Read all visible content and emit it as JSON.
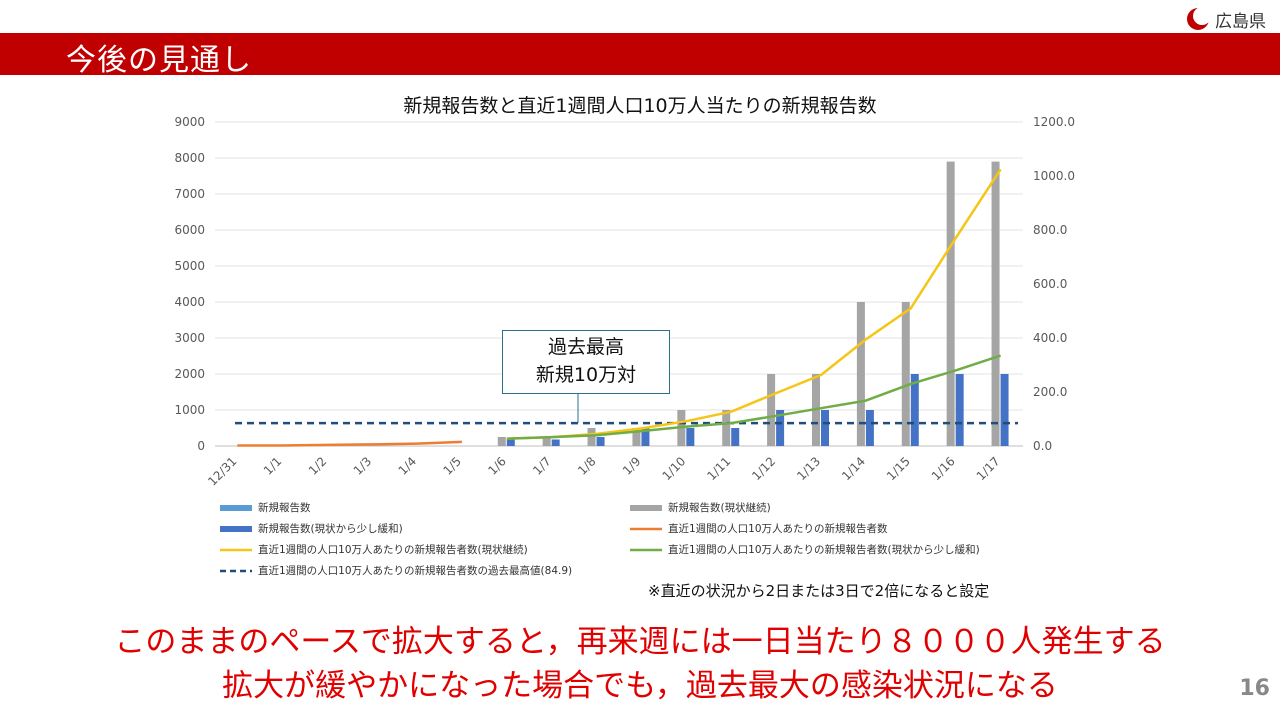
{
  "header": {
    "title": "今後の見通し",
    "logo_text": "広島県"
  },
  "chart_data": {
    "type": "bar",
    "title": "新規報告数と直近1週間人口10万人当たりの新規報告数",
    "categories": [
      "12/31",
      "1/1",
      "1/2",
      "1/3",
      "1/4",
      "1/5",
      "1/6",
      "1/7",
      "1/8",
      "1/9",
      "1/10",
      "1/11",
      "1/12",
      "1/13",
      "1/14",
      "1/15",
      "1/16",
      "1/17"
    ],
    "y_left": {
      "range": [
        0,
        9000
      ],
      "ticks": [
        "0",
        "1000",
        "2000",
        "3000",
        "4000",
        "5000",
        "6000",
        "7000",
        "8000",
        "9000"
      ]
    },
    "y_right": {
      "range": [
        0,
        1200
      ],
      "ticks": [
        "0.0",
        "200.0",
        "400.0",
        "600.0",
        "800.0",
        "1000.0",
        "1200.0"
      ]
    },
    "series": [
      {
        "name": "新規報告数",
        "kind": "bar",
        "axis": "left",
        "color": "#5b9bd5",
        "values": [
          0,
          0,
          0,
          0,
          0,
          0,
          null,
          null,
          null,
          null,
          null,
          null,
          null,
          null,
          null,
          null,
          null,
          null
        ]
      },
      {
        "name": "新規報告数(現状継続)",
        "kind": "bar",
        "axis": "left",
        "color": "#a5a5a5",
        "values": [
          null,
          null,
          null,
          null,
          null,
          null,
          250,
          250,
          500,
          500,
          1000,
          1000,
          2000,
          2000,
          4000,
          4000,
          7900,
          7900
        ]
      },
      {
        "name": "新規報告数(現状から少し緩和)",
        "kind": "bar",
        "axis": "left",
        "color": "#4472c4",
        "values": [
          null,
          null,
          null,
          null,
          null,
          null,
          180,
          180,
          250,
          500,
          500,
          500,
          1000,
          1000,
          1000,
          2000,
          2000,
          2000
        ]
      },
      {
        "name": "直近1週間の人口10万人あたりの新規報告者数",
        "kind": "line",
        "axis": "right",
        "color": "#ed7d31",
        "values": [
          2,
          2,
          4,
          6,
          9,
          15,
          null,
          null,
          null,
          null,
          null,
          null,
          null,
          null,
          null,
          null,
          null,
          null
        ]
      },
      {
        "name": "直近1週間の人口10万人あたりの新規報告者数(現状継続)",
        "kind": "line",
        "axis": "right",
        "color": "#f5c518",
        "values": [
          null,
          null,
          null,
          null,
          null,
          null,
          27,
          33,
          45,
          65,
          92,
          127,
          196,
          263,
          395,
          510,
          770,
          1025
        ]
      },
      {
        "name": "直近1週間の人口10万人あたりの新規報告者数(現状から少し緩和)",
        "kind": "line",
        "axis": "right",
        "color": "#70ad47",
        "values": [
          null,
          null,
          null,
          null,
          null,
          null,
          27,
          33,
          40,
          55,
          72,
          85,
          112,
          140,
          168,
          230,
          280,
          335
        ]
      },
      {
        "name": "直近1週間の人口10万人あたりの新規報告者数の過去最高値(84.9)",
        "kind": "hline",
        "axis": "right",
        "color": "#1f4e79",
        "value": 84.9
      }
    ],
    "callout": [
      "過去最高",
      "新規10万対"
    ],
    "legend_position": "bottom"
  },
  "note": "※直近の状況から2日または3日で2倍になると設定",
  "messages": [
    "このままのペースで拡大すると，再来週には一日当たり８０００人発生する",
    "拡大が緩やかになった場合でも，過去最大の感染状況になる"
  ],
  "page_number": "16"
}
